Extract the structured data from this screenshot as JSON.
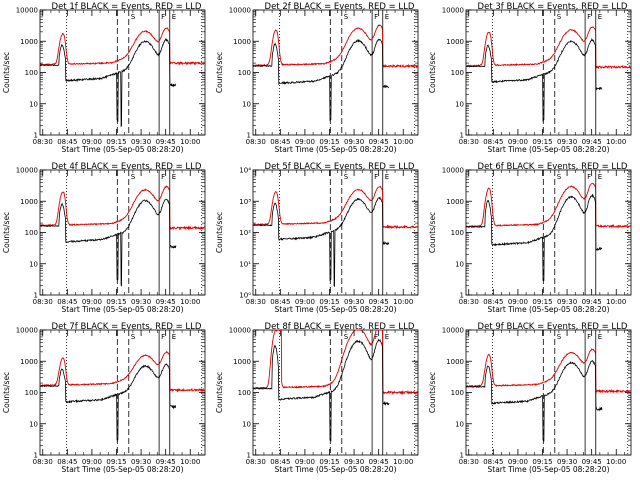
{
  "chart_data": {
    "type": "line",
    "series_legend": "BLACK = Events, RED = LLD",
    "xlabel": "Start Time (05-Sep-05 08:28:20)",
    "ylabel": "Counts/sec",
    "x_ticks": [
      "08:30",
      "08:45",
      "09:00",
      "09:15",
      "09:30",
      "09:45",
      "10:00"
    ],
    "x_tick_minutes": [
      30,
      45,
      60,
      75,
      90,
      105,
      120
    ],
    "x_range_minutes": [
      28.33,
      129
    ],
    "y_scale": "log",
    "ylim": [
      1,
      10000
    ],
    "y_ticks_plain": [
      "1",
      "10",
      "100",
      "1000",
      "10000"
    ],
    "y_ticks_power": [
      "10⁰",
      "10¹",
      "10²",
      "10³",
      "10⁴"
    ],
    "markers": [
      {
        "type": "dotted",
        "minute": 44.5
      },
      {
        "type": "dashed",
        "minute": 75.5
      },
      {
        "type": "dashed",
        "minute": 82.5,
        "letter": "S"
      },
      {
        "type": "solid",
        "minute": 101,
        "letter": "F"
      },
      {
        "type": "solid",
        "minute": 107.5,
        "letter": "E"
      },
      {
        "type": "dotted",
        "minute": 127
      }
    ],
    "panels": [
      {
        "title": "Det 1f BLACK = Events, RED = LLD",
        "y_style": "plain",
        "lld_tail": 200,
        "ev_base": 55,
        "lld_base": 180,
        "ev_tail": 40,
        "lld_peak": 1300,
        "ev_peak": 600,
        "second_ev_dip": true,
        "spike": false
      },
      {
        "title": "Det 2f BLACK = Events, RED = LLD",
        "y_style": "plain",
        "lld_tail": 160,
        "ev_base": 45,
        "lld_base": 170,
        "ev_tail": 35,
        "lld_peak": 1700,
        "ev_peak": 650,
        "second_ev_dip": false,
        "spike": false
      },
      {
        "title": "Det 3f BLACK = Events, RED = LLD",
        "y_style": "plain",
        "lld_tail": 150,
        "ev_base": 50,
        "lld_base": 165,
        "ev_tail": 30,
        "lld_peak": 1500,
        "ev_peak": 600,
        "second_ev_dip": false,
        "spike": false
      },
      {
        "title": "Det 4f BLACK = Events, RED = LLD",
        "y_style": "plain",
        "lld_tail": 140,
        "ev_base": 50,
        "lld_base": 170,
        "ev_tail": 35,
        "lld_peak": 1500,
        "ev_peak": 650,
        "second_ev_dip": true,
        "spike": false
      },
      {
        "title": "Det 5f BLACK = Events, RED = LLD",
        "y_style": "power",
        "lld_tail": 150,
        "ev_base": 60,
        "lld_base": 180,
        "ev_tail": 45,
        "lld_peak": 1500,
        "ev_peak": 700,
        "second_ev_dip": true,
        "spike": false
      },
      {
        "title": "Det 6f BLACK = Events, RED = LLD",
        "y_style": "plain",
        "lld_tail": 160,
        "ev_base": 40,
        "lld_base": 160,
        "ev_tail": 30,
        "lld_peak": 2000,
        "ev_peak": 900,
        "second_ev_dip": false,
        "spike": false
      },
      {
        "title": "Det 7f BLACK = Events, RED = LLD",
        "y_style": "plain",
        "lld_tail": 120,
        "ev_base": 50,
        "lld_base": 170,
        "ev_tail": 35,
        "lld_peak": 900,
        "ev_peak": 400,
        "second_ev_dip": false,
        "spike": false
      },
      {
        "title": "Det 8f BLACK = Events, RED = LLD",
        "y_style": "plain",
        "lld_tail": 100,
        "ev_base": 60,
        "lld_base": 140,
        "ev_tail": 45,
        "lld_peak": 8000,
        "ev_peak": 3000,
        "second_ev_dip": false,
        "spike": true
      },
      {
        "title": "Det 9f BLACK = Events, RED = LLD",
        "y_style": "plain",
        "lld_tail": 110,
        "ev_base": 45,
        "lld_base": 160,
        "ev_tail": 30,
        "lld_peak": 1200,
        "ev_peak": 550,
        "second_ev_dip": false,
        "spike": false
      }
    ]
  }
}
